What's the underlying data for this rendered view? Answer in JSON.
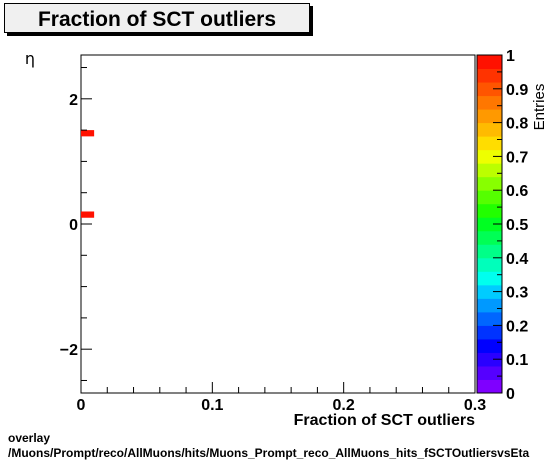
{
  "chart_data": {
    "type": "heatmap",
    "title": "Fraction of SCT outliers",
    "xlabel": "Fraction of SCT outliers",
    "ylabel": "η",
    "zlabel": "Entries",
    "xlim": [
      0,
      0.3
    ],
    "ylim": [
      -2.7,
      2.7
    ],
    "zlim": [
      0,
      1
    ],
    "x_ticks": [
      {
        "value": 0,
        "label": "0"
      },
      {
        "value": 0.1,
        "label": "0.1"
      },
      {
        "value": 0.2,
        "label": "0.2"
      },
      {
        "value": 0.3,
        "label": "0.3"
      }
    ],
    "y_ticks": [
      {
        "value": -2,
        "label": "−2"
      },
      {
        "value": 0,
        "label": "0"
      },
      {
        "value": 2,
        "label": "2"
      }
    ],
    "z_ticks": [
      {
        "value": 0,
        "label": "0"
      },
      {
        "value": 0.1,
        "label": "0.1"
      },
      {
        "value": 0.2,
        "label": "0.2"
      },
      {
        "value": 0.3,
        "label": "0.3"
      },
      {
        "value": 0.4,
        "label": "0.4"
      },
      {
        "value": 0.5,
        "label": "0.5"
      },
      {
        "value": 0.6,
        "label": "0.6"
      },
      {
        "value": 0.7,
        "label": "0.7"
      },
      {
        "value": 0.8,
        "label": "0.8"
      },
      {
        "value": 0.9,
        "label": "0.9"
      },
      {
        "value": 1,
        "label": "1"
      }
    ],
    "cells": [
      {
        "x0": 0,
        "x1": 0.01,
        "y0": 1.4,
        "y1": 1.5,
        "value": 1
      },
      {
        "x0": 0,
        "x1": 0.01,
        "y0": 0.1,
        "y1": 0.2,
        "value": 1
      }
    ],
    "palette": [
      "#7f00ff",
      "#5500ff",
      "#2a00ff",
      "#0000ff",
      "#0033ff",
      "#0066ff",
      "#0099ff",
      "#00ccff",
      "#00ffee",
      "#00ffbb",
      "#00ff88",
      "#00ff55",
      "#00ff22",
      "#22ff00",
      "#55ff00",
      "#88ff00",
      "#bbff00",
      "#eeff00",
      "#ffdd00",
      "#ffbb00",
      "#ff9900",
      "#ff7700",
      "#ff5500",
      "#ff3300",
      "#ff1100"
    ],
    "grid": false,
    "legend": "none"
  },
  "footer": {
    "line1": "overlay",
    "line2": "/Muons/Prompt/reco/AllMuons/hits/Muons_Prompt_reco_AllMuons_hits_fSCTOutliersvsEta"
  }
}
